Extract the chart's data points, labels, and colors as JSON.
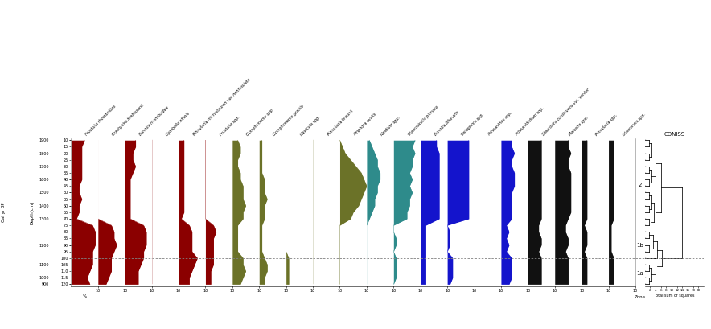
{
  "depth_cm": [
    10,
    15,
    20,
    25,
    30,
    35,
    40,
    45,
    50,
    55,
    60,
    65,
    70,
    75,
    80,
    85,
    90,
    95,
    100,
    105,
    110,
    115,
    120
  ],
  "age_bp": [
    1900,
    1850,
    1800,
    1750,
    1700,
    1650,
    1600,
    1550,
    1500,
    1450,
    1400,
    1350,
    1300,
    1280,
    1260,
    1240,
    1220,
    1180,
    1150,
    1100,
    1050,
    1000,
    950
  ],
  "species": [
    "Frustulia rhomboides",
    "Brachysira brebissonii",
    "Eunotia rhomboidea",
    "Cymbella affinis",
    "Pinnularia microstauron var. nonfasciata",
    "Frustulia spp.",
    "Gomphonema spp.",
    "Gomphonema gracile",
    "Navicula spp.",
    "Pinnularia braunii",
    "Amphora ovalis",
    "Neidium spp.",
    "Staurosirella pinnata",
    "Eunotia bilunaris",
    "Sellaphora spp.",
    "Achnanthes spp.",
    "Achnanthidium spp.",
    "Staurosira construens var. venter",
    "Melosira spp.",
    "Pinnularia spp.",
    "Stauroneis spp."
  ],
  "species_colors": [
    "#8B0000",
    "#8B0000",
    "#8B0000",
    "#8B0000",
    "#8B0000",
    "#8B0000",
    "#6B7228",
    "#6B7228",
    "#6B7228",
    "#6B7228",
    "#6B7228",
    "#2E8B8B",
    "#2E8B8B",
    "#1414CC",
    "#1414CC",
    "#1414CC",
    "#1414CC",
    "#111111",
    "#111111",
    "#111111",
    "#111111"
  ],
  "data": {
    "Frustulia rhomboides": [
      5,
      4,
      4,
      4,
      4,
      4,
      4,
      3,
      3,
      4,
      3,
      3,
      2,
      8,
      9,
      9,
      9,
      8,
      8,
      8,
      7,
      6,
      7
    ],
    "Brachysira brebissonii": [
      0,
      0,
      0,
      0,
      0,
      0,
      0,
      0,
      0,
      0,
      0,
      0,
      0,
      5,
      6,
      6,
      7,
      6,
      5,
      5,
      5,
      4,
      3
    ],
    "Eunotia rhomboidea": [
      4,
      4,
      3,
      3,
      4,
      3,
      2,
      2,
      2,
      2,
      2,
      2,
      2,
      7,
      8,
      8,
      8,
      7,
      7,
      6,
      5,
      5,
      5
    ],
    "Cymbella affinis": [
      0,
      0,
      0,
      0,
      0,
      0,
      0,
      0,
      0,
      0,
      0,
      0,
      0,
      0,
      0,
      0,
      0,
      0,
      0,
      0,
      0,
      0,
      0
    ],
    "Pinnularia microstauron var. nonfasciata": [
      2,
      2,
      2,
      2,
      2,
      2,
      2,
      2,
      2,
      2,
      2,
      2,
      1,
      4,
      5,
      5,
      5,
      5,
      7,
      6,
      5,
      4,
      4
    ],
    "Frustulia spp.": [
      0,
      0,
      0,
      0,
      0,
      0,
      0,
      0,
      0,
      0,
      0,
      0,
      0,
      3,
      4,
      3,
      3,
      3,
      3,
      3,
      2,
      2,
      2
    ],
    "Gomphonema spp.": [
      2,
      3,
      3,
      2,
      2,
      3,
      3,
      4,
      4,
      4,
      5,
      4,
      4,
      2,
      2,
      2,
      2,
      2,
      4,
      4,
      5,
      4,
      3
    ],
    "Gomphonema gracile": [
      1,
      1,
      1,
      1,
      1,
      1,
      2,
      2,
      2,
      3,
      2,
      2,
      2,
      1,
      1,
      1,
      1,
      1,
      2,
      3,
      3,
      2,
      2
    ],
    "Navicula spp.": [
      0,
      0,
      0,
      0,
      0,
      0,
      0,
      0,
      0,
      0,
      0,
      0,
      0,
      0,
      0,
      0,
      0,
      0,
      1,
      1,
      1,
      1,
      1
    ],
    "Pinnularia braunii": [
      0,
      0,
      0,
      0,
      0,
      0,
      0,
      0,
      0,
      0,
      0,
      0,
      0,
      0,
      0,
      0,
      0,
      0,
      0,
      0,
      0,
      0,
      0
    ],
    "Amphora ovalis": [
      0,
      1,
      2,
      4,
      6,
      8,
      9,
      10,
      9,
      8,
      7,
      5,
      4,
      0,
      0,
      0,
      0,
      0,
      0,
      0,
      0,
      0,
      0
    ],
    "Neidium spp.": [
      1,
      2,
      3,
      4,
      4,
      5,
      5,
      4,
      4,
      3,
      3,
      2,
      1,
      0,
      0,
      0,
      0,
      0,
      0,
      0,
      0,
      0,
      0
    ],
    "Staurosirella pinnata": [
      8,
      7,
      8,
      7,
      7,
      6,
      7,
      6,
      7,
      6,
      6,
      5,
      5,
      0,
      0,
      1,
      1,
      0,
      1,
      1,
      1,
      1,
      0
    ],
    "Eunotia bilunaris": [
      6,
      6,
      7,
      7,
      7,
      7,
      7,
      7,
      7,
      7,
      7,
      7,
      7,
      2,
      2,
      2,
      2,
      2,
      2,
      2,
      2,
      2,
      2
    ],
    "Sellaphora spp.": [
      8,
      8,
      8,
      8,
      8,
      8,
      8,
      8,
      8,
      8,
      8,
      8,
      8,
      0,
      1,
      1,
      1,
      0,
      2,
      2,
      2,
      2,
      1
    ],
    "Achnanthes spp.": [
      0,
      0,
      0,
      0,
      0,
      0,
      0,
      0,
      0,
      0,
      0,
      0,
      0,
      0,
      0,
      0,
      0,
      0,
      0,
      0,
      0,
      0,
      0
    ],
    "Achnanthidium spp.": [
      4,
      4,
      5,
      4,
      4,
      5,
      5,
      5,
      4,
      4,
      4,
      4,
      4,
      2,
      3,
      2,
      3,
      2,
      4,
      4,
      4,
      4,
      3
    ],
    "Staurosira construens var. venter": [
      5,
      5,
      5,
      5,
      5,
      5,
      5,
      5,
      5,
      5,
      5,
      5,
      5,
      4,
      4,
      5,
      5,
      4,
      5,
      5,
      5,
      5,
      5
    ],
    "Melosira spp.": [
      5,
      5,
      6,
      5,
      5,
      6,
      6,
      6,
      6,
      6,
      6,
      6,
      5,
      4,
      4,
      5,
      5,
      4,
      5,
      5,
      5,
      5,
      5
    ],
    "Pinnularia spp.": [
      2,
      2,
      2,
      2,
      2,
      2,
      2,
      2,
      2,
      2,
      2,
      2,
      2,
      1,
      2,
      2,
      2,
      1,
      2,
      2,
      2,
      2,
      2
    ],
    "Stauroneis spp.": [
      2,
      2,
      2,
      2,
      2,
      2,
      2,
      2,
      2,
      2,
      2,
      2,
      2,
      1,
      1,
      1,
      1,
      1,
      2,
      2,
      2,
      2,
      2
    ]
  },
  "solid_line_depth": 80,
  "dashed_line_depth": 100,
  "y_depth_ticks": [
    10,
    15,
    20,
    25,
    30,
    35,
    40,
    45,
    50,
    55,
    60,
    65,
    70,
    75,
    80,
    85,
    90,
    95,
    100,
    105,
    110,
    115,
    120
  ],
  "y_age_ticks": [
    1900,
    1800,
    1700,
    1600,
    1500,
    1400,
    1300,
    1200,
    1100,
    1000,
    900
  ],
  "x_max": 10,
  "zone_labels": [
    "1a",
    "1b",
    "2"
  ],
  "zone_label_depths": [
    112,
    90,
    44
  ]
}
